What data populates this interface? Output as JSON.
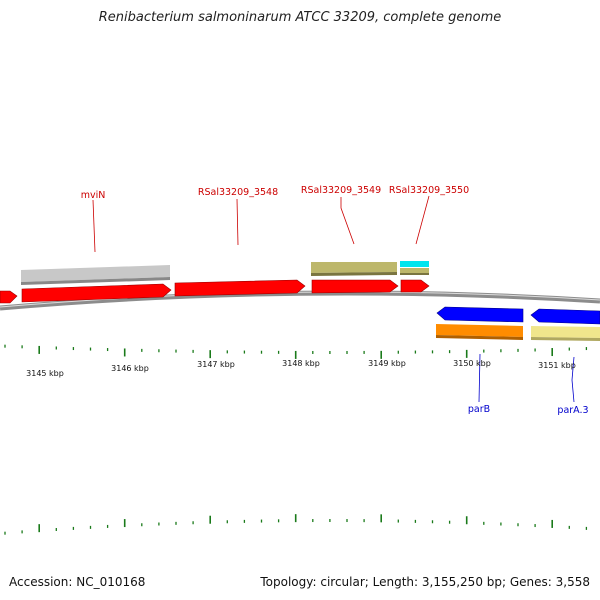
{
  "title": "Renibacterium salmoninarum ATCC 33209, complete genome",
  "footer": {
    "accession": "Accession: NC_010168",
    "summary": "Topology: circular; Length: 3,155,250 bp; Genes: 3,558"
  },
  "colors": {
    "cds_forward": "#ff0000",
    "cds_reverse": "#0000ff",
    "gray_feature": "#c8c8c8",
    "olive_feature": "#bdb76b",
    "cyan_feature": "#00e5ee",
    "orange_feature": "#ff8c00",
    "khaki_feature": "#f0e68c",
    "label_forward": "#cc0000",
    "label_reverse": "#0000cc",
    "tick": "#1a7a1a",
    "backbone": "#8c8c8c"
  },
  "axis": {
    "unit": "kbp",
    "ticks": [
      {
        "label": "3145 kbp"
      },
      {
        "label": "3146 kbp"
      },
      {
        "label": "3147 kbp"
      },
      {
        "label": "3148 kbp"
      },
      {
        "label": "3149 kbp"
      },
      {
        "label": "3150 kbp"
      },
      {
        "label": "3151 kbp"
      }
    ]
  },
  "genes": [
    {
      "label": "mviN",
      "strand": "forward",
      "color_key": "cds_forward"
    },
    {
      "label": "RSal33209_3548",
      "strand": "forward",
      "color_key": "cds_forward"
    },
    {
      "label": "RSal33209_3549",
      "strand": "forward",
      "color_key": "cds_forward"
    },
    {
      "label": "RSal33209_3550",
      "strand": "forward",
      "color_key": "cds_forward"
    },
    {
      "label": "parB",
      "strand": "reverse",
      "color_key": "cds_reverse"
    },
    {
      "label": "parA.3",
      "strand": "reverse",
      "color_key": "cds_reverse"
    }
  ]
}
